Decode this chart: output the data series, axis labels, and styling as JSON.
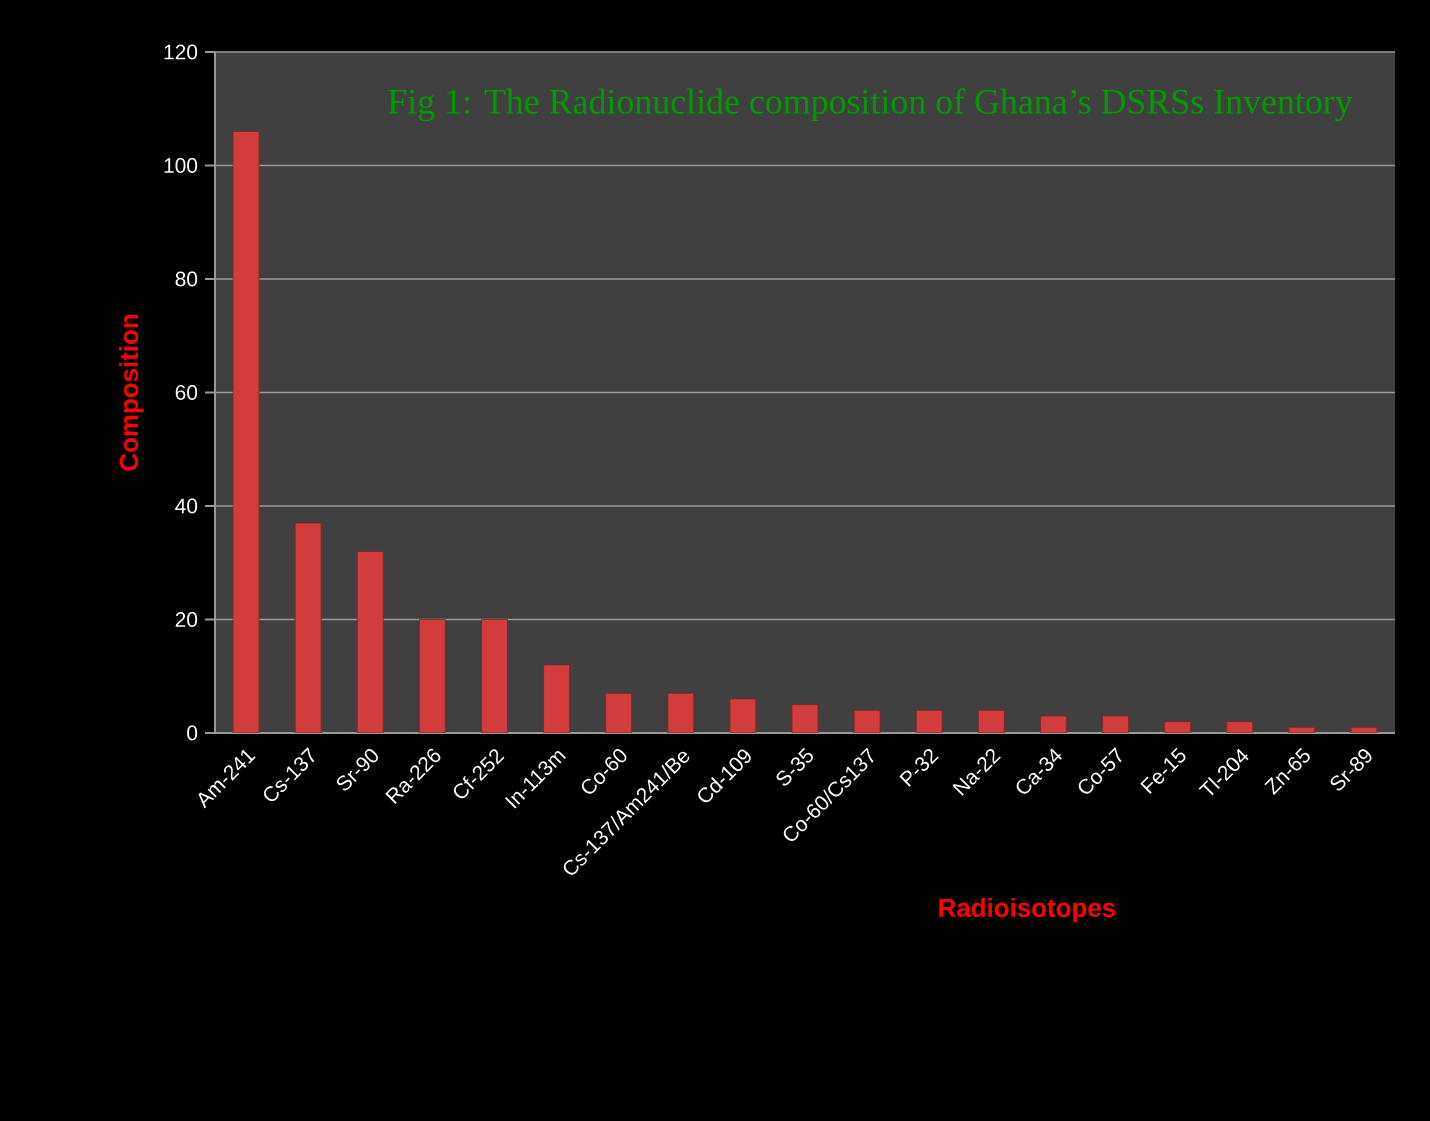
{
  "chart_data": {
    "type": "bar",
    "title": "Fig 1: The Radionuclide composition of Ghana’s DSRSs Inventory",
    "xlabel": "Radioisotopes",
    "ylabel": "Composition",
    "categories": [
      "Am-241",
      "Cs-137",
      "Sr-90",
      "Ra-226",
      "Cf-252",
      "In-113m",
      "Co-60",
      "Cs-137/Am241/Be",
      "Cd-109",
      "S-35",
      "Co-60/Cs137",
      "P-32",
      "Na-22",
      "Ca-34",
      "Co-57",
      "Fe-15",
      "Tl-204",
      "Zn-65",
      "Sr-89"
    ],
    "values": [
      106,
      37,
      32,
      20,
      20,
      12,
      7,
      7,
      6,
      5,
      4,
      4,
      4,
      3,
      3,
      2,
      2,
      1,
      1
    ],
    "color": "#d23c3c",
    "ylim": [
      0,
      120
    ],
    "yticks": [
      0,
      20,
      40,
      60,
      80,
      100,
      120
    ],
    "grid": "y"
  }
}
